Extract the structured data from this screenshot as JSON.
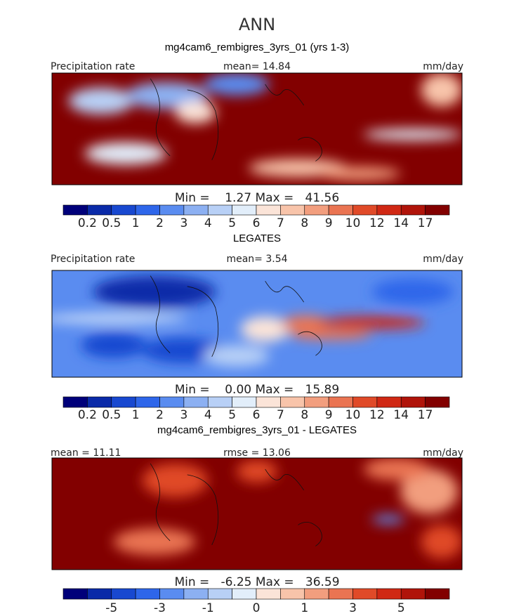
{
  "title": "ANN",
  "colorbar_colors": [
    "#00007a",
    "#0a2aa8",
    "#1848d0",
    "#2e66ea",
    "#5a8cf0",
    "#8cb0f2",
    "#b8d0f6",
    "#e2eefa",
    "#fbe4d8",
    "#f8c4aa",
    "#f29e7e",
    "#ea7452",
    "#e04a28",
    "#d02814",
    "#b0140a",
    "#820000"
  ],
  "panels": [
    {
      "heading": "mg4cam6_rembigres_3yrs_01 (yrs 1-3)",
      "top_left": "Precipitation rate",
      "top_center": "mean=  14.84",
      "top_right": "mm/day",
      "stats": "Min =    1.27 Max =   41.56",
      "colorbar_labels": [
        "0.2",
        "0.5",
        "1",
        "2",
        "3",
        "4",
        "5",
        "6",
        "7",
        "8",
        "9",
        "10",
        "12",
        "14",
        "17"
      ]
    },
    {
      "heading": "LEGATES",
      "top_left": "Precipitation rate",
      "top_center": "mean=   3.54",
      "top_right": "mm/day",
      "stats": "Min =    0.00 Max =   15.89",
      "colorbar_labels": [
        "0.2",
        "0.5",
        "1",
        "2",
        "3",
        "4",
        "5",
        "6",
        "7",
        "8",
        "9",
        "10",
        "12",
        "14",
        "17"
      ]
    },
    {
      "heading": "mg4cam6_rembigres_3yrs_01 - LEGATES",
      "top_left": "mean =  11.11",
      "top_center": "rmse =  13.06",
      "top_right": "mm/day",
      "stats": "Min =   -6.25 Max =   36.59",
      "colorbar_labels": [
        null,
        "-5",
        null,
        "-3",
        null,
        "-1",
        null,
        "0",
        null,
        "1",
        null,
        "3",
        null,
        "5",
        null
      ]
    }
  ]
}
